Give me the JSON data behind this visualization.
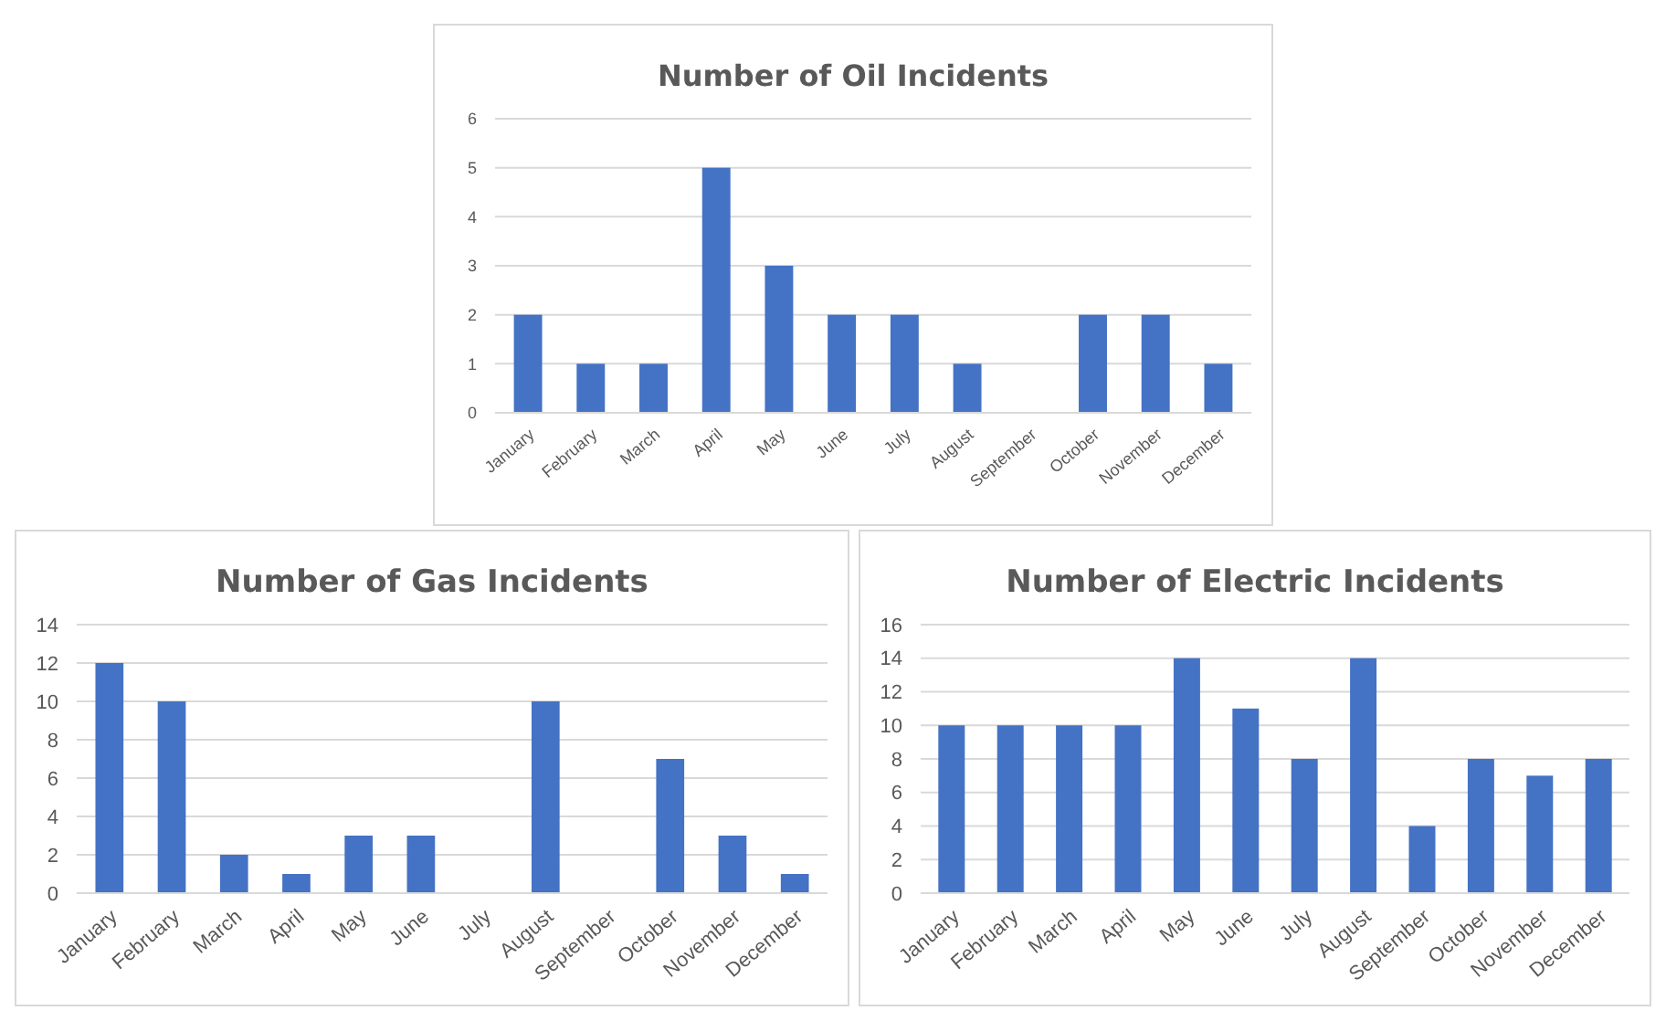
{
  "chart_data": [
    {
      "type": "bar",
      "title": "Number of Oil Incidents",
      "categories": [
        "January",
        "February",
        "March",
        "April",
        "May",
        "June",
        "July",
        "August",
        "September",
        "October",
        "November",
        "December"
      ],
      "values": [
        2,
        1,
        1,
        5,
        3,
        2,
        2,
        1,
        0,
        2,
        2,
        1
      ],
      "color": "#4472c4",
      "ylim": [
        0,
        6
      ],
      "yticks": [
        0,
        1,
        2,
        3,
        4,
        5,
        6
      ],
      "grid": "y"
    },
    {
      "type": "bar",
      "title": "Number of Gas Incidents",
      "categories": [
        "January",
        "February",
        "March",
        "April",
        "May",
        "June",
        "July",
        "August",
        "September",
        "October",
        "November",
        "December"
      ],
      "values": [
        12,
        10,
        2,
        1,
        3,
        3,
        0,
        10,
        0,
        7,
        3,
        1
      ],
      "color": "#4472c4",
      "ylim": [
        0,
        14
      ],
      "yticks": [
        0,
        2,
        4,
        6,
        8,
        10,
        12,
        14
      ],
      "grid": "y"
    },
    {
      "type": "bar",
      "title": "Number of Electric Incidents",
      "categories": [
        "January",
        "February",
        "March",
        "April",
        "May",
        "June",
        "July",
        "August",
        "September",
        "October",
        "November",
        "December"
      ],
      "values": [
        10,
        10,
        10,
        10,
        14,
        11,
        8,
        14,
        4,
        8,
        7,
        8
      ],
      "color": "#4472c4",
      "ylim": [
        0,
        16
      ],
      "yticks": [
        0,
        2,
        4,
        6,
        8,
        10,
        12,
        14,
        16
      ],
      "grid": "y"
    }
  ]
}
